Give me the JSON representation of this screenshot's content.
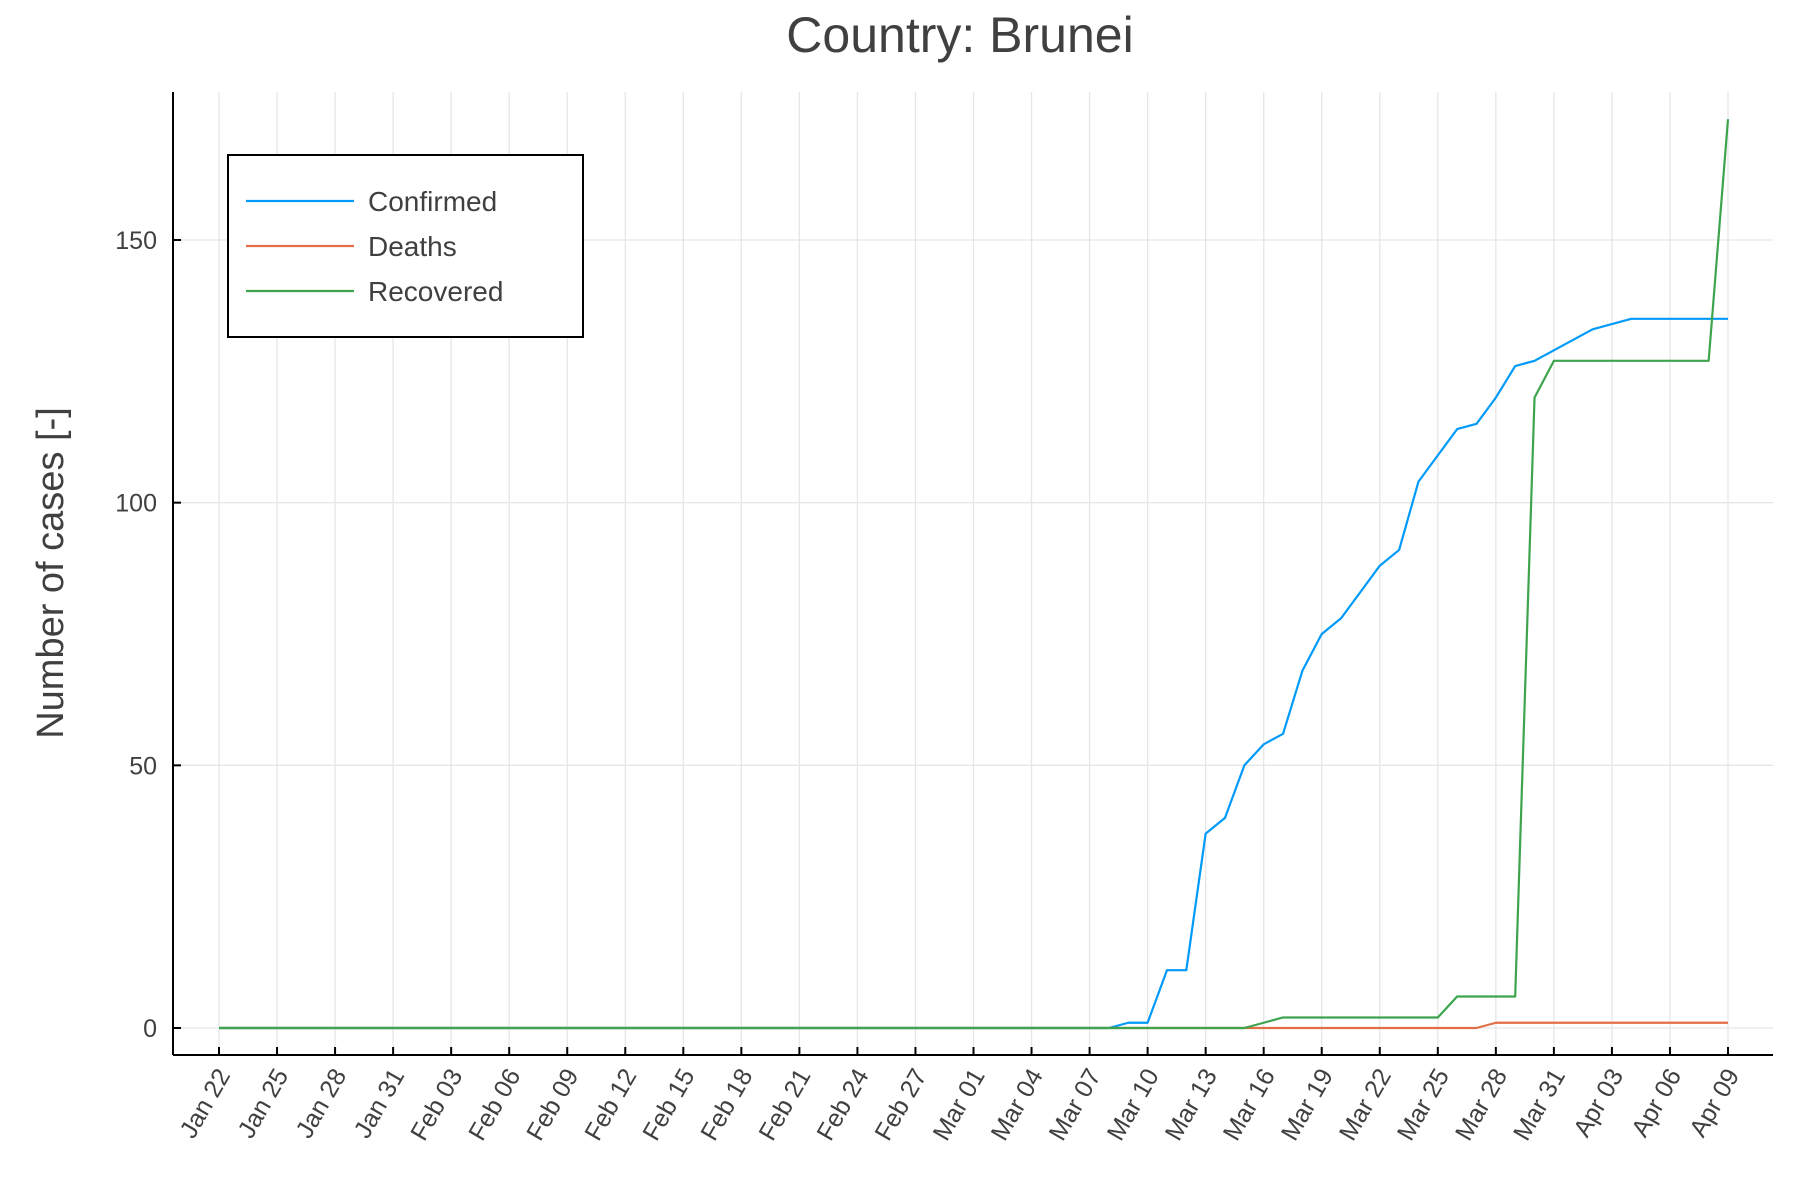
{
  "chart_data": {
    "type": "line",
    "title": "Country: Brunei",
    "xlabel": "",
    "ylabel": "Number of cases [-]",
    "ylim": [
      -5,
      176
    ],
    "yticks": [
      0,
      50,
      100,
      150
    ],
    "grid": true,
    "legend_position": "top-left",
    "x_start": "2020-01-22",
    "x_end": "2020-04-09",
    "x_tick_labels": [
      "Jan 22",
      "Jan 25",
      "Jan 28",
      "Jan 31",
      "Feb 03",
      "Feb 06",
      "Feb 09",
      "Feb 12",
      "Feb 15",
      "Feb 18",
      "Feb 21",
      "Feb 24",
      "Feb 27",
      "Mar 01",
      "Mar 04",
      "Mar 07",
      "Mar 10",
      "Mar 13",
      "Mar 16",
      "Mar 19",
      "Mar 22",
      "Mar 25",
      "Mar 28",
      "Mar 31",
      "Apr 03",
      "Apr 06",
      "Apr 09"
    ],
    "series": [
      {
        "name": "Confirmed",
        "color": "#009af9",
        "points": [
          [
            "2020-01-22",
            0
          ],
          [
            "2020-03-08",
            0
          ],
          [
            "2020-03-09",
            1
          ],
          [
            "2020-03-10",
            1
          ],
          [
            "2020-03-11",
            11
          ],
          [
            "2020-03-12",
            11
          ],
          [
            "2020-03-13",
            37
          ],
          [
            "2020-03-14",
            40
          ],
          [
            "2020-03-15",
            50
          ],
          [
            "2020-03-16",
            54
          ],
          [
            "2020-03-17",
            56
          ],
          [
            "2020-03-18",
            68
          ],
          [
            "2020-03-19",
            75
          ],
          [
            "2020-03-20",
            78
          ],
          [
            "2020-03-21",
            83
          ],
          [
            "2020-03-22",
            88
          ],
          [
            "2020-03-23",
            91
          ],
          [
            "2020-03-24",
            104
          ],
          [
            "2020-03-25",
            109
          ],
          [
            "2020-03-26",
            114
          ],
          [
            "2020-03-27",
            115
          ],
          [
            "2020-03-28",
            120
          ],
          [
            "2020-03-29",
            126
          ],
          [
            "2020-03-30",
            127
          ],
          [
            "2020-03-31",
            129
          ],
          [
            "2020-04-01",
            131
          ],
          [
            "2020-04-02",
            133
          ],
          [
            "2020-04-03",
            134
          ],
          [
            "2020-04-04",
            135
          ],
          [
            "2020-04-05",
            135
          ],
          [
            "2020-04-06",
            135
          ],
          [
            "2020-04-07",
            135
          ],
          [
            "2020-04-08",
            135
          ],
          [
            "2020-04-09",
            135
          ]
        ]
      },
      {
        "name": "Deaths",
        "color": "#e26f46",
        "points": [
          [
            "2020-01-22",
            0
          ],
          [
            "2020-03-27",
            0
          ],
          [
            "2020-03-28",
            1
          ],
          [
            "2020-04-09",
            1
          ]
        ]
      },
      {
        "name": "Recovered",
        "color": "#3da44d",
        "points": [
          [
            "2020-01-22",
            0
          ],
          [
            "2020-03-15",
            0
          ],
          [
            "2020-03-16",
            1
          ],
          [
            "2020-03-17",
            2
          ],
          [
            "2020-03-25",
            2
          ],
          [
            "2020-03-26",
            6
          ],
          [
            "2020-03-29",
            6
          ],
          [
            "2020-03-30",
            120
          ],
          [
            "2020-03-31",
            127
          ],
          [
            "2020-04-08",
            127
          ],
          [
            "2020-04-09",
            173
          ]
        ]
      }
    ]
  }
}
